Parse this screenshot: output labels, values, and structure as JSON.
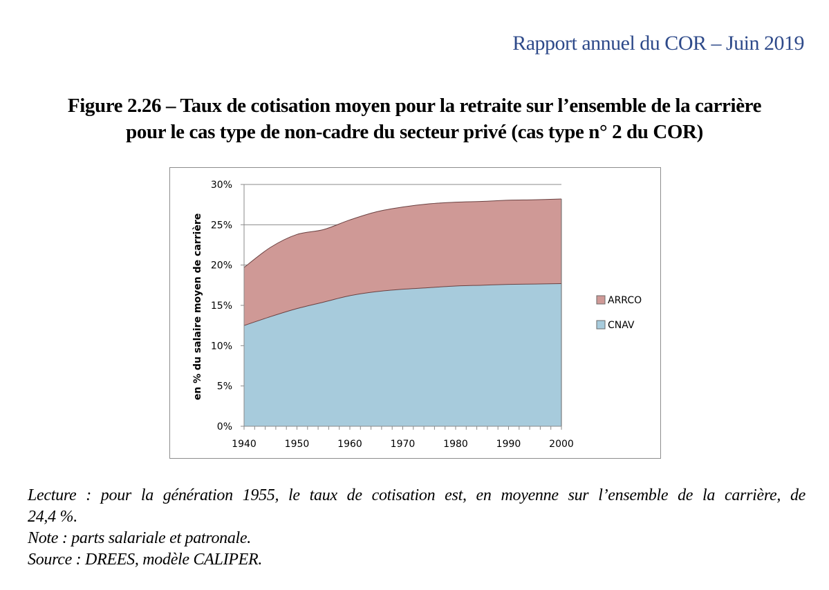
{
  "header": {
    "text": "Rapport annuel du COR – Juin 2019"
  },
  "figure": {
    "title_line1": "Figure 2.26 – Taux de cotisation moyen pour la retraite sur l’ensemble de la carrière",
    "title_line2": "pour le cas type de non-cadre du secteur privé (cas type n° 2 du COR)"
  },
  "chart_data": {
    "type": "area",
    "stacked": true,
    "title": "",
    "xlabel": "",
    "ylabel": "en % du salaire moyen de carrière",
    "x": [
      1940,
      1945,
      1950,
      1955,
      1960,
      1965,
      1970,
      1975,
      1980,
      1985,
      1990,
      1995,
      2000
    ],
    "xticks": [
      "1940",
      "1950",
      "1960",
      "1970",
      "1980",
      "1990",
      "2000"
    ],
    "yticks": [
      "0%",
      "5%",
      "10%",
      "15%",
      "20%",
      "25%",
      "30%"
    ],
    "ylim": [
      0,
      30
    ],
    "xlim": [
      1940,
      2000
    ],
    "series": [
      {
        "name": "CNAV",
        "color": "#a7cbdc",
        "values": [
          12.5,
          13.6,
          14.6,
          15.4,
          16.2,
          16.7,
          17.0,
          17.2,
          17.4,
          17.5,
          17.6,
          17.65,
          17.7
        ]
      },
      {
        "name": "ARRCO",
        "color": "#cf9996",
        "values": [
          7.2,
          8.6,
          9.2,
          9.0,
          9.4,
          9.9,
          10.2,
          10.4,
          10.4,
          10.4,
          10.45,
          10.45,
          10.5
        ]
      }
    ],
    "legend_position": "right",
    "legend_order": [
      "ARRCO",
      "CNAV"
    ],
    "grid": "horizontal"
  },
  "notes": {
    "lecture_line1": "Lecture : pour la génération 1955, le taux de cotisation est, en moyenne sur l’ensemble de la carrière, de",
    "lecture_line2": "24,4 %.",
    "note": "Note : parts salariale et patronale.",
    "source": "Source : DREES, modèle CALIPER."
  }
}
